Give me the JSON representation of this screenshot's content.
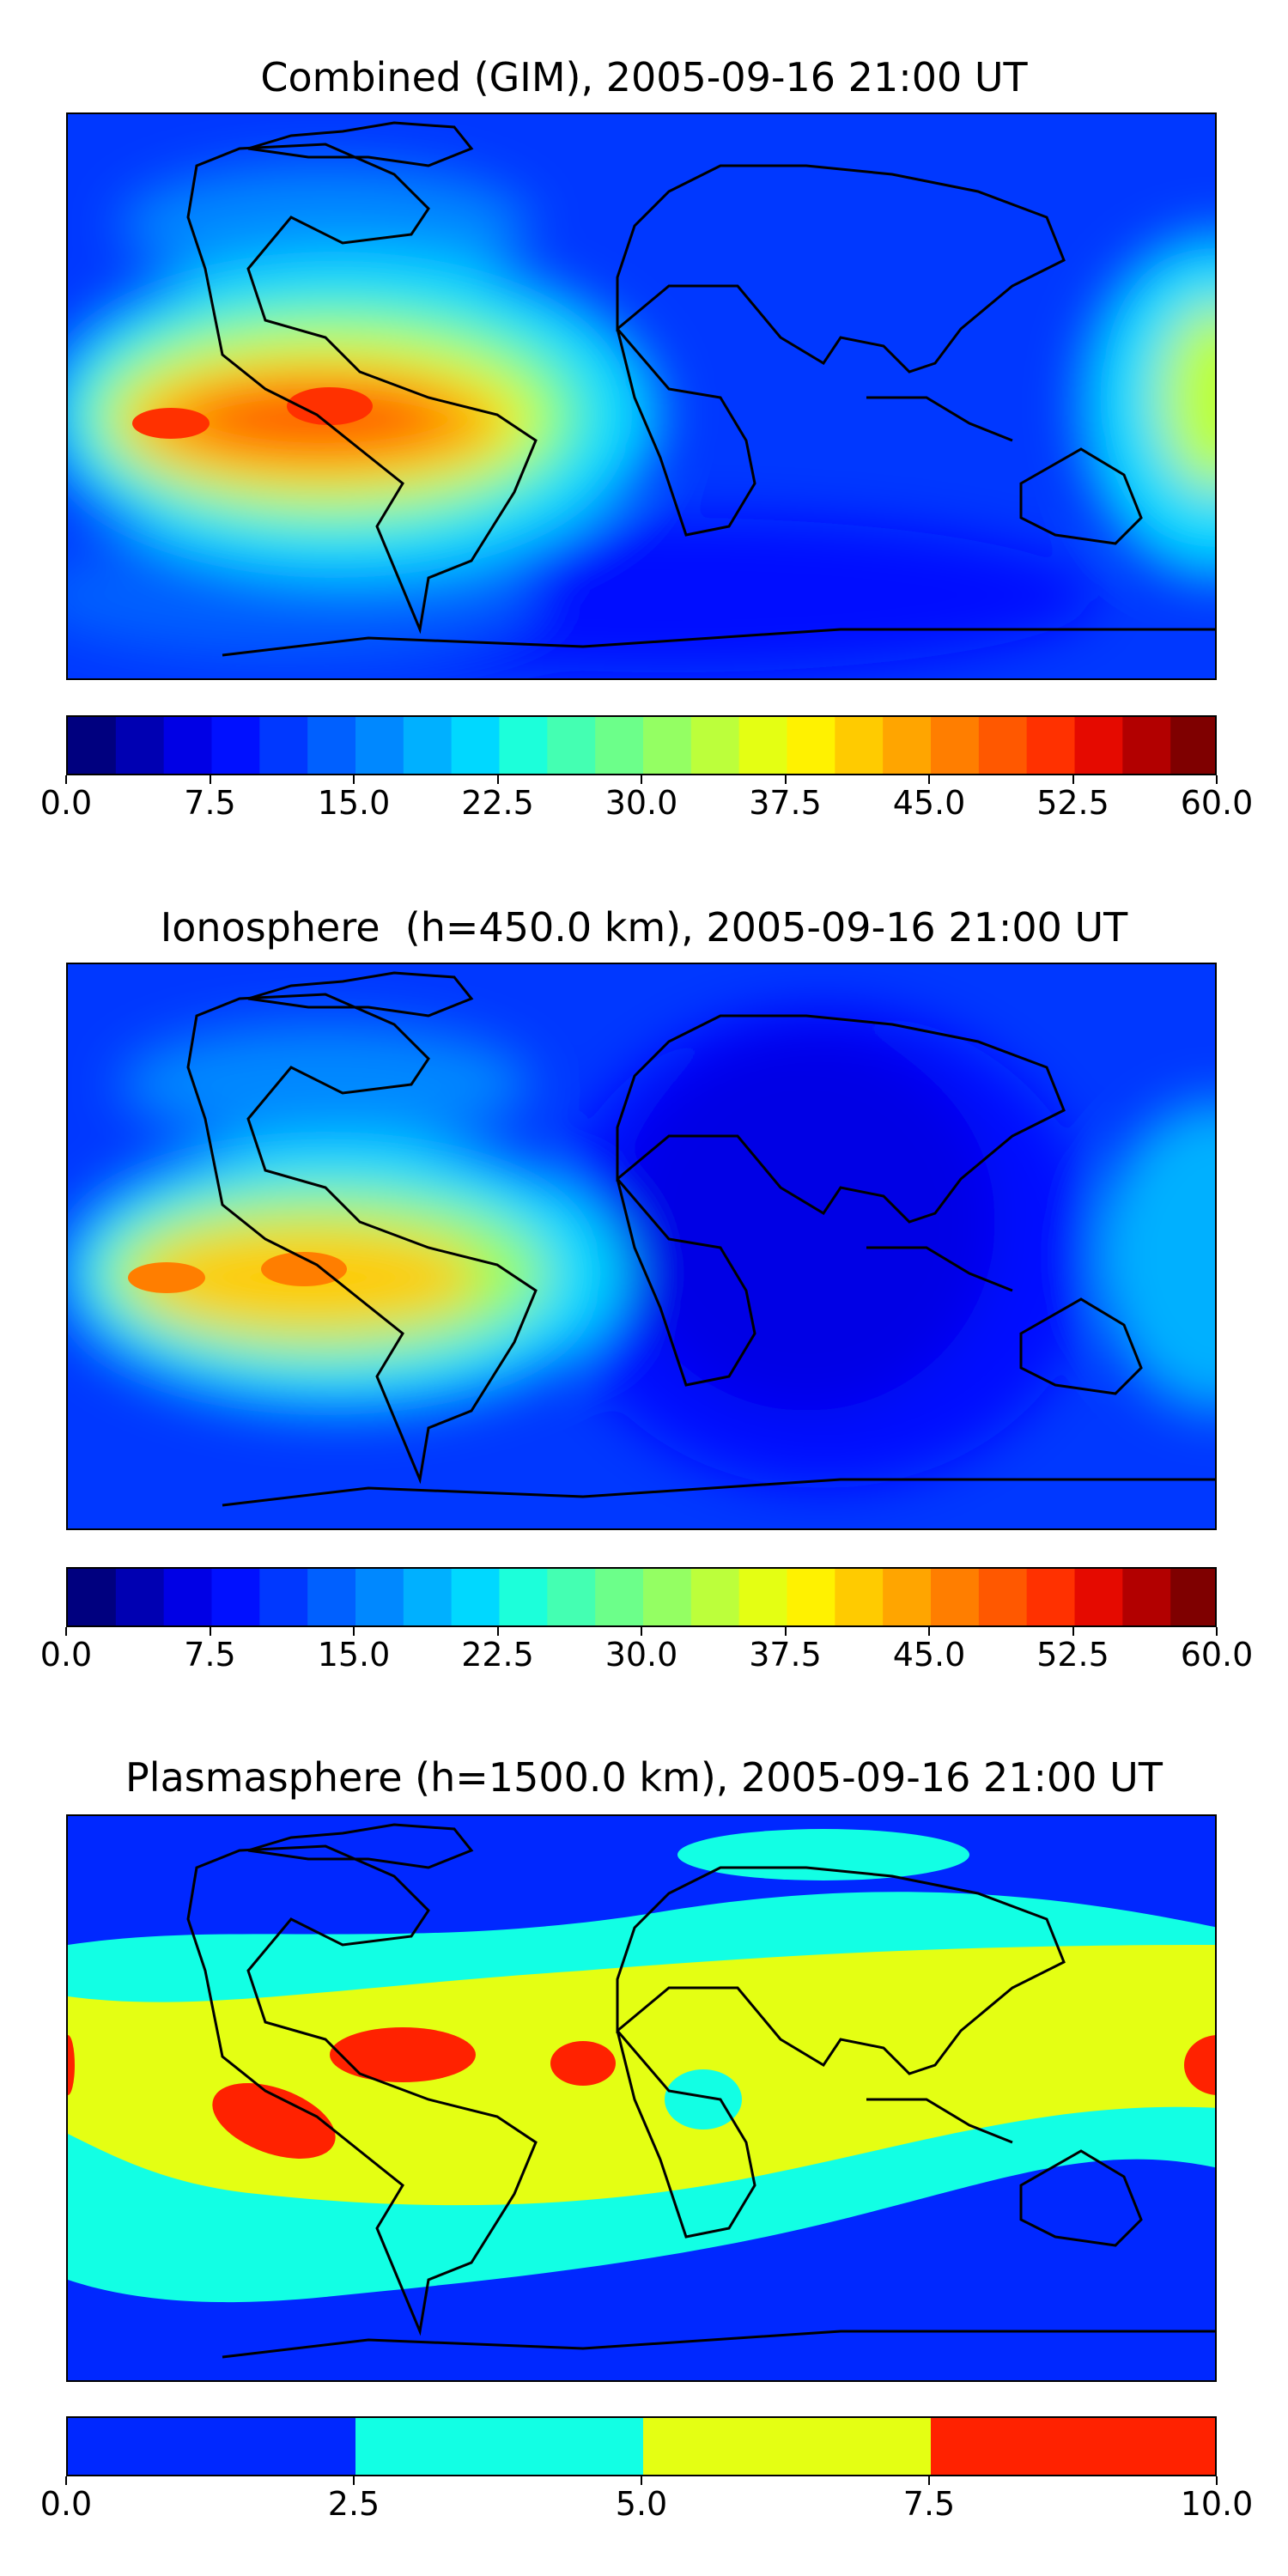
{
  "panels": [
    {
      "title": "Combined (GIM), 2005-09-16 21:00 UT",
      "colorbar": {
        "min": 0,
        "max": 60,
        "levels": 24,
        "ticks": [
          "0.0",
          "7.5",
          "15.0",
          "22.5",
          "30.0",
          "37.5",
          "45.0",
          "52.5",
          "60.0"
        ]
      }
    },
    {
      "title": "Ionosphere  (h=450.0 km), 2005-09-16 21:00 UT",
      "colorbar": {
        "min": 0,
        "max": 60,
        "levels": 24,
        "ticks": [
          "0.0",
          "7.5",
          "15.0",
          "22.5",
          "30.0",
          "37.5",
          "45.0",
          "52.5",
          "60.0"
        ]
      }
    },
    {
      "title": "Plasmasphere (h=1500.0 km), 2005-09-16 21:00 UT",
      "colorbar": {
        "min": 0,
        "max": 10,
        "levels": 4,
        "ticks": [
          "0.0",
          "2.5",
          "5.0",
          "7.5",
          "10.0"
        ]
      }
    }
  ],
  "colors": {
    "jet24": [
      "#00007f",
      "#0000b2",
      "#0000e5",
      "#0010ff",
      "#0038ff",
      "#0060ff",
      "#0088ff",
      "#00b0ff",
      "#00d8ff",
      "#1cffda",
      "#44ffb2",
      "#6cff8a",
      "#94ff63",
      "#bcff3b",
      "#e4ff13",
      "#fff200",
      "#ffcb00",
      "#ffa500",
      "#ff7e00",
      "#ff5800",
      "#ff3100",
      "#e50a00",
      "#b20000",
      "#7f0000"
    ],
    "jet4": [
      "#0028ff",
      "#12ffe4",
      "#e4ff13",
      "#ff2200"
    ],
    "coast": "#000000"
  }
}
